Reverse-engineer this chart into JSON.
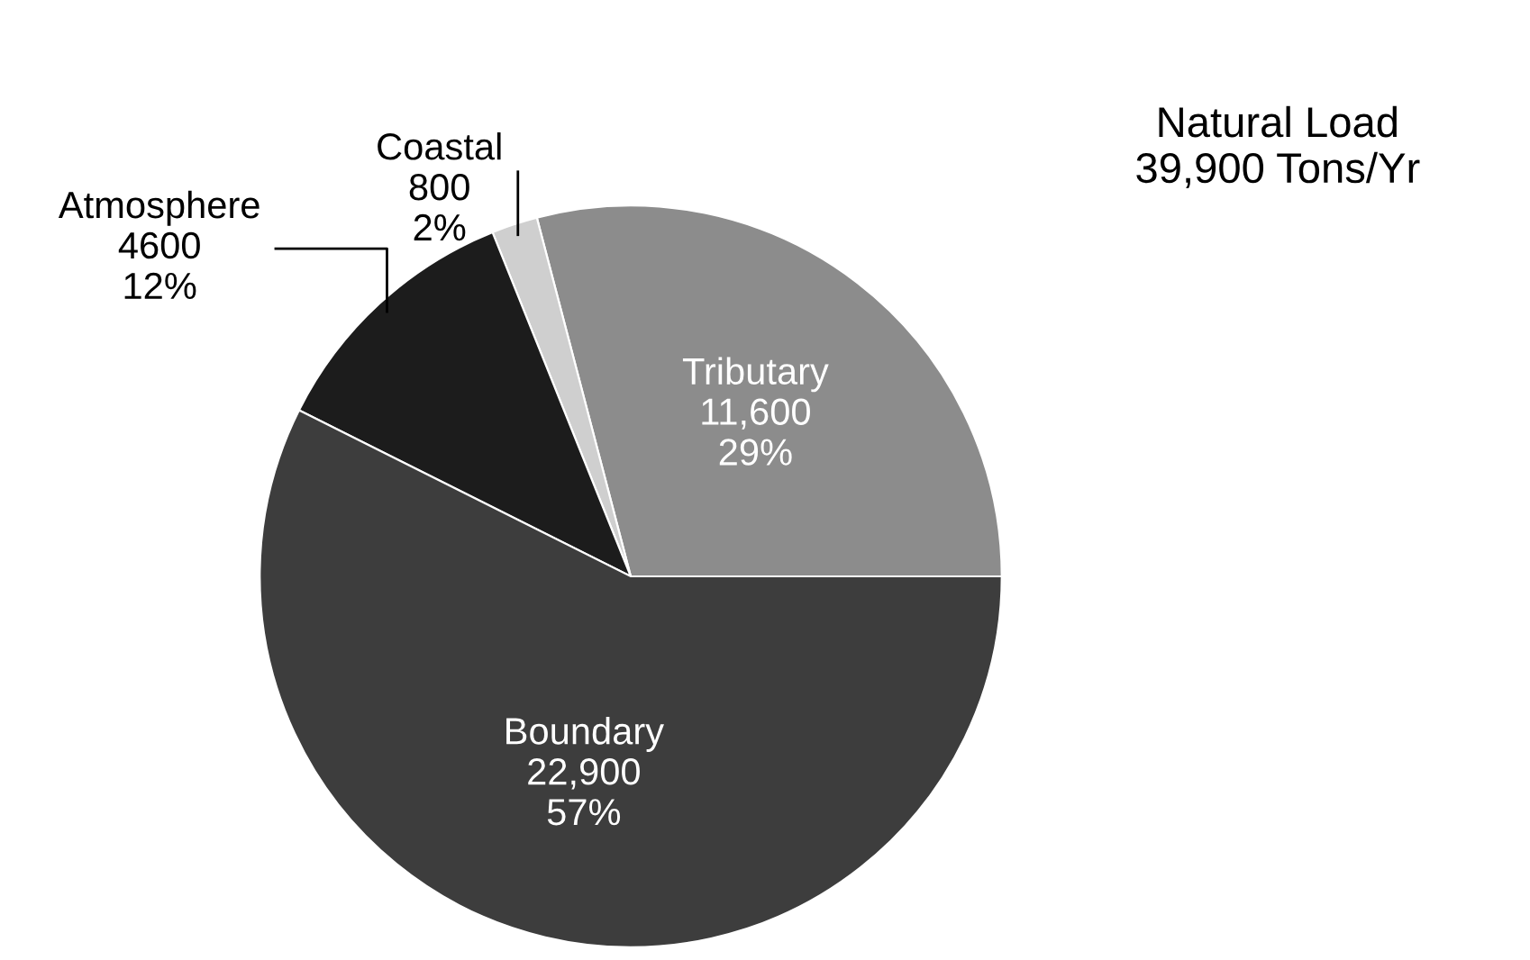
{
  "chart_data": {
    "type": "pie",
    "title": "Natural Load\n39,900 Tons/Yr",
    "categories": [
      "Tributary",
      "Coastal",
      "Atmosphere",
      "Boundary"
    ],
    "values": [
      11600,
      800,
      4600,
      22900
    ],
    "colors": [
      "#8c8c8c",
      "#cfcfcf",
      "#1c1c1c",
      "#3d3d3d"
    ],
    "value_labels": [
      "11,600\n29%",
      "800\n2%",
      "4600\n12%",
      "22,900\n57%"
    ]
  }
}
